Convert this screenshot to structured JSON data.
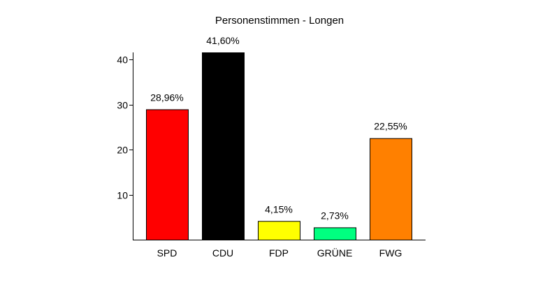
{
  "chart_data": {
    "type": "bar",
    "title": "Personenstimmen - Longen",
    "xlabel": "",
    "ylabel": "",
    "categories": [
      "SPD",
      "CDU",
      "FDP",
      "GRÜNE",
      "FWG"
    ],
    "values": [
      28.96,
      41.6,
      4.15,
      2.73,
      22.55
    ],
    "data_labels": [
      "28,96%",
      "41,60%",
      "4,15%",
      "2,73%",
      "22,55%"
    ],
    "colors": [
      "#ff0000",
      "#000000",
      "#ffff00",
      "#00ff80",
      "#ff8000"
    ],
    "yticks": [
      10,
      20,
      30,
      40
    ],
    "ytick_labels": [
      "10",
      "20",
      "30",
      "40"
    ],
    "ylim": [
      0,
      41.6
    ],
    "grid": false,
    "legend": "none"
  }
}
